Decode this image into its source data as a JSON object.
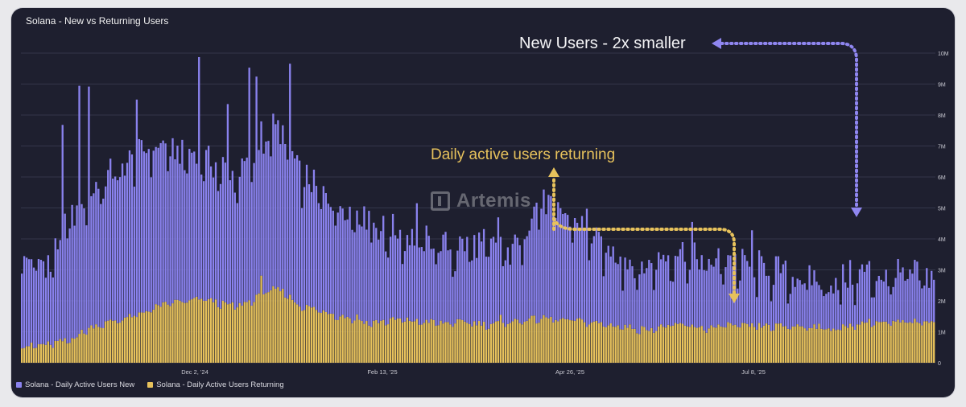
{
  "title": "Solana - New vs Returning Users",
  "watermark": "Artemis",
  "annotations": {
    "new_users": "New Users - 2x smaller",
    "returning": "Daily active users returning"
  },
  "colors": {
    "new": "#8a82ee",
    "returning": "#e7c25c",
    "new_arrow": "#8f86f0",
    "returning_arrow": "#e7c25c",
    "background": "#1e1f2f",
    "grid": "#34364a"
  },
  "chart_data": {
    "type": "bar",
    "stacked": true,
    "title": "Solana - New vs Returning Users",
    "xlabel": "",
    "ylabel": "",
    "ylim": [
      0,
      10000000
    ],
    "y_ticks": [
      "0",
      "1M",
      "2M",
      "3M",
      "4M",
      "5M",
      "6M",
      "7M",
      "8M",
      "9M",
      "10M"
    ],
    "x_ticks": [
      "Dec 2, '24",
      "Feb 13, '25",
      "Apr 26, '25",
      "Jul 8, '25"
    ],
    "x_range": [
      "Oct 2, '24",
      "Oct 18, '25"
    ],
    "legend_position": "bottom-left",
    "series": [
      {
        "name": "Solana - Daily Active Users New",
        "key": "new",
        "anchors": [
          [
            0,
            2.7
          ],
          [
            4,
            2.9
          ],
          [
            10,
            2.6
          ],
          [
            15,
            3.1
          ],
          [
            20,
            3.9
          ],
          [
            25,
            4.3
          ],
          [
            30,
            4.5
          ],
          [
            35,
            4.7
          ],
          [
            40,
            4.9
          ],
          [
            45,
            5.0
          ],
          [
            50,
            5.2
          ],
          [
            55,
            5.3
          ],
          [
            60,
            5.1
          ],
          [
            65,
            4.8
          ],
          [
            70,
            4.8
          ],
          [
            75,
            4.7
          ],
          [
            80,
            4.4
          ],
          [
            85,
            4.4
          ],
          [
            90,
            4.2
          ],
          [
            95,
            4.6
          ],
          [
            100,
            4.9
          ],
          [
            105,
            5.2
          ],
          [
            110,
            5.1
          ],
          [
            115,
            4.4
          ],
          [
            120,
            4.1
          ],
          [
            125,
            3.8
          ],
          [
            130,
            3.7
          ],
          [
            135,
            3.6
          ],
          [
            140,
            3.5
          ],
          [
            145,
            3.3
          ],
          [
            150,
            3.0
          ],
          [
            155,
            2.9
          ],
          [
            160,
            2.8
          ],
          [
            165,
            2.7
          ],
          [
            170,
            2.6
          ],
          [
            175,
            2.6
          ],
          [
            180,
            2.4
          ],
          [
            185,
            2.5
          ],
          [
            190,
            2.6
          ],
          [
            195,
            2.6
          ],
          [
            200,
            2.4
          ],
          [
            205,
            2.2
          ],
          [
            210,
            3.0
          ],
          [
            215,
            3.6
          ],
          [
            220,
            3.7
          ],
          [
            225,
            3.5
          ],
          [
            230,
            3.3
          ],
          [
            235,
            3.0
          ],
          [
            240,
            2.6
          ],
          [
            245,
            2.5
          ],
          [
            250,
            2.2
          ],
          [
            255,
            2.1
          ],
          [
            260,
            2.0
          ],
          [
            265,
            2.3
          ],
          [
            270,
            2.3
          ],
          [
            275,
            2.4
          ],
          [
            280,
            2.3
          ],
          [
            285,
            2.2
          ],
          [
            290,
            2.1
          ],
          [
            295,
            2.2
          ],
          [
            300,
            2.0
          ],
          [
            305,
            2.0
          ],
          [
            310,
            1.9
          ],
          [
            315,
            1.8
          ],
          [
            320,
            1.7
          ],
          [
            325,
            1.6
          ],
          [
            330,
            1.6
          ],
          [
            335,
            1.5
          ],
          [
            340,
            1.5
          ],
          [
            345,
            1.6
          ],
          [
            350,
            1.7
          ],
          [
            355,
            1.6
          ],
          [
            360,
            1.5
          ],
          [
            365,
            1.5
          ],
          [
            370,
            1.6
          ],
          [
            376,
            1.5
          ],
          [
            381,
            1.5
          ]
        ],
        "spikes": [
          [
            17,
            3.8
          ],
          [
            24,
            3.4
          ],
          [
            28,
            3.0
          ],
          [
            48,
            2.5
          ],
          [
            74,
            2.9
          ],
          [
            86,
            2.0
          ],
          [
            95,
            2.6
          ],
          [
            98,
            2.3
          ],
          [
            112,
            2.6
          ],
          [
            145,
            1.2
          ],
          [
            165,
            1.0
          ],
          [
            199,
            1.0
          ],
          [
            205,
            0.5
          ],
          [
            215,
            0.8
          ],
          [
            236,
            1.2
          ],
          [
            250,
            0.9
          ],
          [
            280,
            0.9
          ],
          [
            305,
            0.7
          ]
        ]
      },
      {
        "name": "Solana - Daily Active Users Returning",
        "key": "returning",
        "anchors": [
          [
            0,
            0.55
          ],
          [
            10,
            0.6
          ],
          [
            20,
            0.75
          ],
          [
            25,
            1.0
          ],
          [
            30,
            1.2
          ],
          [
            35,
            1.3
          ],
          [
            40,
            1.4
          ],
          [
            45,
            1.5
          ],
          [
            50,
            1.6
          ],
          [
            55,
            1.8
          ],
          [
            60,
            1.9
          ],
          [
            65,
            2.0
          ],
          [
            70,
            2.0
          ],
          [
            75,
            2.1
          ],
          [
            80,
            2.0
          ],
          [
            85,
            1.9
          ],
          [
            90,
            1.85
          ],
          [
            95,
            2.0
          ],
          [
            100,
            2.2
          ],
          [
            105,
            2.4
          ],
          [
            110,
            2.3
          ],
          [
            115,
            1.9
          ],
          [
            120,
            1.8
          ],
          [
            125,
            1.7
          ],
          [
            130,
            1.6
          ],
          [
            135,
            1.5
          ],
          [
            140,
            1.4
          ],
          [
            145,
            1.3
          ],
          [
            150,
            1.35
          ],
          [
            155,
            1.4
          ],
          [
            160,
            1.4
          ],
          [
            165,
            1.35
          ],
          [
            170,
            1.35
          ],
          [
            175,
            1.3
          ],
          [
            180,
            1.3
          ],
          [
            185,
            1.35
          ],
          [
            190,
            1.3
          ],
          [
            195,
            1.25
          ],
          [
            200,
            1.3
          ],
          [
            205,
            1.35
          ],
          [
            210,
            1.4
          ],
          [
            215,
            1.45
          ],
          [
            220,
            1.45
          ],
          [
            225,
            1.4
          ],
          [
            230,
            1.4
          ],
          [
            235,
            1.35
          ],
          [
            240,
            1.3
          ],
          [
            245,
            1.25
          ],
          [
            250,
            1.2
          ],
          [
            255,
            1.15
          ],
          [
            260,
            1.1
          ],
          [
            265,
            1.15
          ],
          [
            270,
            1.2
          ],
          [
            275,
            1.25
          ],
          [
            280,
            1.2
          ],
          [
            285,
            1.15
          ],
          [
            290,
            1.15
          ],
          [
            295,
            1.25
          ],
          [
            300,
            1.2
          ],
          [
            305,
            1.2
          ],
          [
            310,
            1.2
          ],
          [
            315,
            1.2
          ],
          [
            320,
            1.2
          ],
          [
            325,
            1.2
          ],
          [
            330,
            1.2
          ],
          [
            335,
            1.15
          ],
          [
            340,
            1.1
          ],
          [
            345,
            1.2
          ],
          [
            350,
            1.3
          ],
          [
            355,
            1.35
          ],
          [
            360,
            1.3
          ],
          [
            365,
            1.3
          ],
          [
            370,
            1.35
          ],
          [
            376,
            1.35
          ],
          [
            381,
            1.4
          ]
        ],
        "spikes": [
          [
            100,
            0.7
          ],
          [
            140,
            0.2
          ],
          [
            200,
            0.2
          ]
        ]
      }
    ],
    "units": "millions"
  }
}
